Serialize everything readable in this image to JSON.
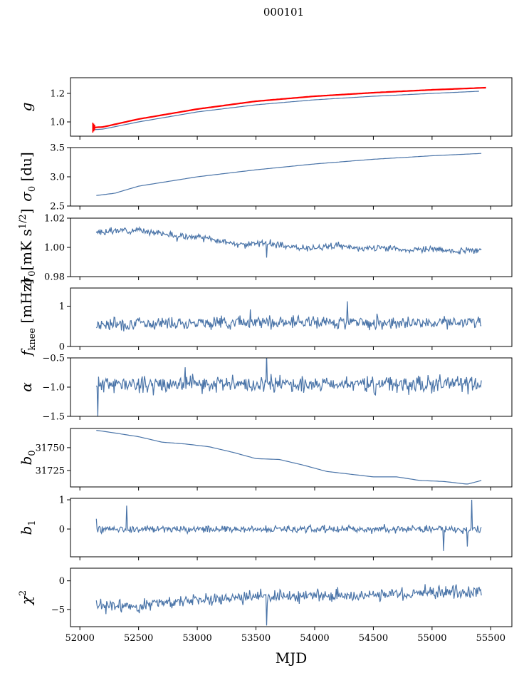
{
  "figure": {
    "title": "000101"
  },
  "chart_data": {
    "type": "line",
    "title": "000101",
    "xlabel": "MJD",
    "xlim": [
      51920,
      55680
    ],
    "x_ticks": [
      52000,
      52500,
      53000,
      53500,
      54000,
      54500,
      55000,
      55500
    ],
    "x_tick_labels": [
      "52000",
      "52500",
      "53000",
      "53500",
      "54000",
      "54500",
      "55000",
      "55500"
    ],
    "series_color": "#4a74a8",
    "fit_color": "#ff0000",
    "grid": false,
    "panels": [
      {
        "id": "g",
        "ylabel": "g",
        "ylim": [
          0.9,
          1.31
        ],
        "yticks": [
          1.0,
          1.2
        ],
        "ytick_labels": [
          "1.0",
          "1.2"
        ],
        "series": [
          {
            "style": "line",
            "color": "#4a74a8",
            "x": [
              52110,
              52200,
              52500,
              53000,
              53500,
              54000,
              54500,
              55000,
              55400
            ],
            "y": [
              0.945,
              0.95,
              1.0,
              1.07,
              1.12,
              1.155,
              1.18,
              1.2,
              1.215
            ]
          },
          {
            "style": "errorline",
            "color": "#ff0000",
            "x": [
              52110,
              52200,
              52500,
              53000,
              53500,
              54000,
              54500,
              55000,
              55460
            ],
            "y": [
              0.96,
              0.965,
              1.02,
              1.09,
              1.145,
              1.18,
              1.205,
              1.225,
              1.24
            ]
          }
        ]
      },
      {
        "id": "sigma0_du",
        "ylabel": "σ₀ [du]",
        "ylim": [
          2.5,
          3.5
        ],
        "yticks": [
          2.5,
          3.0,
          3.5
        ],
        "ytick_labels": [
          "2.5",
          "3.0",
          "3.5"
        ],
        "series": [
          {
            "style": "line",
            "color": "#4a74a8",
            "x": [
              52140,
              52300,
              52500,
              53000,
              53500,
              54000,
              54500,
              55000,
              55420
            ],
            "y": [
              2.68,
              2.72,
              2.84,
              3.0,
              3.12,
              3.22,
              3.3,
              3.36,
              3.4
            ]
          }
        ]
      },
      {
        "id": "sigma0_mk",
        "ylabel": "σ₀[mK s^1/2]",
        "ylim": [
          0.98,
          1.02
        ],
        "yticks": [
          0.98,
          1.0,
          1.02
        ],
        "ytick_labels": [
          "0.98",
          "1.00",
          "1.02"
        ],
        "series": [
          {
            "style": "noisy",
            "color": "#4a74a8",
            "x": [
              52140,
              52400,
              52600,
              52800,
              53000,
              53200,
              53400,
              53600,
              53800,
              54000,
              54200,
              54400,
              54600,
              54800,
              55000,
              55200,
              55420
            ],
            "y": [
              1.01,
              1.012,
              1.011,
              1.008,
              1.007,
              1.004,
              1.002,
              1.003,
              1.0,
              1.0,
              1.001,
              0.999,
              1.0,
              0.998,
              0.999,
              0.997,
              0.998
            ],
            "noise": 0.0015,
            "seed": 3,
            "spikes": [
              [
                53590,
                0.993
              ],
              [
                52830,
                1.004
              ]
            ]
          }
        ]
      },
      {
        "id": "fknee",
        "ylabel": "f_knee [mHz]",
        "ylim": [
          0,
          1.45
        ],
        "yticks": [
          0,
          1
        ],
        "ytick_labels": [
          "0",
          "1"
        ],
        "series": [
          {
            "style": "noisy",
            "color": "#4a74a8",
            "x": [
              52140,
              53000,
              54000,
              55420
            ],
            "y": [
              0.55,
              0.6,
              0.6,
              0.6
            ],
            "noise": 0.11,
            "seed": 7,
            "spikes": [
              [
                54280,
                1.12
              ],
              [
                53450,
                0.92
              ]
            ]
          }
        ]
      },
      {
        "id": "alpha",
        "ylabel": "α",
        "ylim": [
          -1.5,
          -0.5
        ],
        "yticks": [
          -1.5,
          -1.0,
          -0.5
        ],
        "ytick_labels": [
          "−1.5",
          "−1.0",
          "−0.5"
        ],
        "series": [
          {
            "style": "noisy",
            "color": "#4a74a8",
            "x": [
              52140,
              53000,
              54000,
              55420
            ],
            "y": [
              -0.95,
              -0.95,
              -0.95,
              -0.95
            ],
            "noise": 0.1,
            "seed": 11,
            "spikes": [
              [
                52150,
                -1.5
              ],
              [
                53590,
                -0.45
              ],
              [
                52900,
                -0.66
              ]
            ]
          }
        ]
      },
      {
        "id": "b0",
        "ylabel": "b₀",
        "ylim": [
          31707,
          31771
        ],
        "yticks": [
          31725,
          31750
        ],
        "ytick_labels": [
          "31725",
          "31750"
        ],
        "series": [
          {
            "style": "line",
            "color": "#4a74a8",
            "x": [
              52140,
              52300,
              52500,
              52700,
              52900,
              53100,
              53300,
              53500,
              53700,
              53900,
              54100,
              54300,
              54500,
              54700,
              54900,
              55100,
              55300,
              55420
            ],
            "y": [
              31769,
              31766,
              31762,
              31756,
              31754,
              31751,
              31745,
              31738,
              31737,
              31731,
              31724,
              31721,
              31718,
              31718,
              31714,
              31713,
              31710,
              31714
            ]
          }
        ]
      },
      {
        "id": "b1",
        "ylabel": "b₁",
        "ylim": [
          -0.95,
          1.05
        ],
        "yticks": [
          0,
          1
        ],
        "ytick_labels": [
          "0",
          "1"
        ],
        "series": [
          {
            "style": "noisy",
            "color": "#4a74a8",
            "x": [
              52140,
              53000,
              54000,
              55000,
              55420
            ],
            "y": [
              0.0,
              0.0,
              0.0,
              0.0,
              0.0
            ],
            "noise": 0.09,
            "seed": 19,
            "spikes": [
              [
                52400,
                0.8
              ],
              [
                55100,
                -0.75
              ],
              [
                55340,
                1.0
              ],
              [
                55300,
                -0.6
              ],
              [
                52140,
                0.35
              ]
            ]
          }
        ]
      },
      {
        "id": "chi2",
        "ylabel": "χ²",
        "ylim": [
          -8,
          2.2
        ],
        "yticks": [
          -5,
          0
        ],
        "ytick_labels": [
          "−5",
          "0"
        ],
        "series": [
          {
            "style": "noisy",
            "color": "#4a74a8",
            "x": [
              52140,
              52500,
              53000,
              53500,
              54000,
              54500,
              55000,
              55420
            ],
            "y": [
              -4.5,
              -4.3,
              -3.2,
              -2.8,
              -2.7,
              -2.4,
              -2.0,
              -2.0
            ],
            "noise": 0.8,
            "seed": 23,
            "spikes": [
              [
                53590,
                -7.8
              ]
            ]
          }
        ]
      }
    ]
  }
}
